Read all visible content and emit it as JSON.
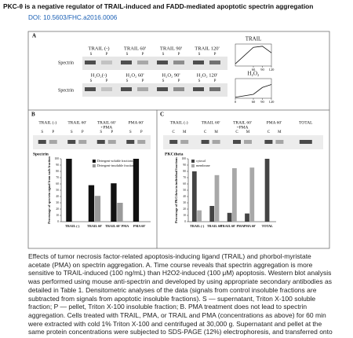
{
  "header": {
    "title": "PKC-θ is a negative regulator of TRAIL-induced and FADD-mediated apoptotic spectrin aggregation",
    "doi": "DOI: 10.5603/FHC.a2016.0006"
  },
  "figure": {
    "panel_a": {
      "label": "A",
      "trail_row": {
        "headers": [
          "TRAIL (-)",
          "TRAIL 60'",
          "TRAIL 90'",
          "TRAIL 120'"
        ],
        "fractions": [
          "S",
          "P"
        ],
        "blot_label": "Spectrin"
      },
      "h2o2_row": {
        "headers": [
          "H₂O₂(-)",
          "H₂O₂ 60'",
          "H₂O₂ 90'",
          "H₂O₂ 120'"
        ],
        "fractions": [
          "S",
          "P"
        ],
        "blot_label": "Spectrin"
      },
      "insets": [
        {
          "type": "line",
          "title": "TRAIL",
          "x": [
            0,
            60,
            90,
            120
          ],
          "values": [
            0.1,
            0.85,
            0.9,
            0.6
          ],
          "xlim": [
            0,
            120
          ],
          "ylim": [
            0,
            1
          ],
          "xticks": [
            60,
            90,
            120
          ]
        },
        {
          "type": "line",
          "title": "H₂O₂",
          "x": [
            0,
            60,
            90,
            120
          ],
          "values": [
            0.05,
            0.2,
            0.55,
            0.7
          ],
          "xlim": [
            0,
            120
          ],
          "ylim": [
            0,
            1
          ],
          "xticks": [
            0,
            60,
            90,
            120
          ]
        }
      ]
    },
    "panel_b": {
      "label": "B",
      "headers": [
        [
          "TRAIL (-)"
        ],
        [
          "TRAIL 60'"
        ],
        [
          "TRAIL 60'",
          "+PMA"
        ],
        [
          "PMA 60'"
        ]
      ],
      "fractions": [
        "S",
        "P"
      ],
      "blot_label": "Spectrin",
      "chart": {
        "type": "bar",
        "y_label": "Percentage of spectrin signal from each fraction",
        "categories": [
          "TRAIL (-)",
          "TRAIL 60'",
          "TRAIL 60' PMA",
          "PMA 60'"
        ],
        "series": [
          {
            "name": "Detergent-soluble fractions",
            "color": "#111111",
            "values": [
              100,
              58,
              61,
              100
            ]
          },
          {
            "name": "Detergent-insoluble fractions",
            "color": "#9a9a9a",
            "values": [
              0,
              41,
              30,
              0
            ]
          }
        ],
        "ylim": [
          0,
          100
        ],
        "yticks": [
          0,
          10,
          20,
          30,
          40,
          50,
          60,
          70,
          80,
          90,
          100
        ],
        "legend": "top-center"
      }
    },
    "panel_c": {
      "label": "C",
      "headers": [
        [
          "TRAIL (-)"
        ],
        [
          "TRAIL 60'"
        ],
        [
          "TRAIL 60'",
          "+PMA"
        ],
        [
          "PMA 60'"
        ],
        [
          "TOTAL"
        ]
      ],
      "fractions": [
        "C",
        "M"
      ],
      "blot_label": "PKCtheta",
      "chart": {
        "type": "bar",
        "y_label": "Percentage of PKCtheta in individual fractions",
        "categories": [
          "TRAIL (-)",
          "TRAIL 60'",
          "TRAIL 60' PMA",
          "PMA 60'",
          "TOTAL"
        ],
        "series": [
          {
            "name": "cytosol",
            "color": "#444444",
            "values": [
              80,
              25,
              14,
              13,
              100
            ]
          },
          {
            "name": "membrane",
            "color": "#a8a8a8",
            "values": [
              18,
              74,
              85,
              86,
              null
            ]
          }
        ],
        "ylim": [
          0,
          100
        ],
        "yticks": [
          0,
          10,
          20,
          30,
          40,
          50,
          60,
          70,
          80,
          90,
          100
        ],
        "legend": "top-left"
      }
    }
  },
  "caption": "Effects of tumor necrosis factor-related apoptosis-inducing ligand (TRAIL) and phorbol-myristate acetate (PMA) on spectrin aggregation. A. Time course reveals that spectrin aggregation is more sensitive to TRAIL-induced (100 ng/mL) than H2O2-induced (100 μM) apoptosis. Western blot analysis was performed using mouse anti-spectrin and developed by using appropriate secondary antibodies as detailed in Table 1. Densitometric analyses of the data (signals from control insoluble fractions are subtracted from signals from apoptotic insoluble fractions). S — supernatant, Triton X-100 soluble fraction; P — pellet, Triton X-100 insoluble fraction; B. PMA treatment does not lead to spectrin aggregation. Cells treated with TRAIL, PMA, or TRAIL and PMA (concentrations as above) for 60 min were extracted with cold 1% Triton X-100 and centrifuged at 30,000 g. Supernatant and pellet at the same protein concentrations were subjected to SDS-PAGE (12%) electrophoresis, and transferred onto nitrocellulose. S — supernatant, Triton X-100 soluble fraction; P — pellet, Triton X-100 insoluble"
}
